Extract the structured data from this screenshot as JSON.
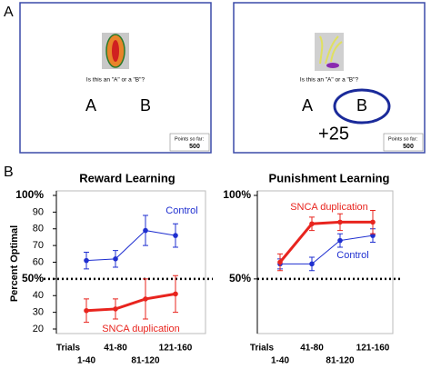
{
  "panel_a": {
    "label": "A",
    "screens": [
      {
        "question": "Is this an \"A\" or a \"B\"?",
        "option_a": "A",
        "option_b": "B",
        "points_label": "Points so far:",
        "points": "500"
      },
      {
        "question": "Is this an \"A\" or a \"B\"?",
        "option_a": "A",
        "option_b": "B",
        "feedback": "+25",
        "points_label": "Points so far:",
        "points": "500"
      }
    ]
  },
  "panel_b": {
    "label": "B",
    "y_label": "Percent Optimal"
  },
  "chart_data": [
    {
      "type": "line",
      "title": "Reward Learning",
      "x_label": "Trials",
      "categories": [
        "1-40",
        "41-80",
        "81-120",
        "121-160"
      ],
      "ylim": [
        20,
        100
      ],
      "yticks": [
        {
          "value": 100,
          "label": "100%"
        },
        90,
        80,
        70,
        60,
        {
          "value": 50,
          "label": "50%"
        },
        40,
        30,
        20
      ],
      "reference_line": 50,
      "series": [
        {
          "name": "Control",
          "color": "#1f2fd0",
          "values": [
            61,
            62,
            79,
            76
          ],
          "errors": [
            5,
            5,
            9,
            7
          ]
        },
        {
          "name": "SNCA duplication",
          "color": "#e8241e",
          "values": [
            31,
            32,
            38,
            41
          ],
          "errors": [
            7,
            6,
            12,
            11
          ]
        }
      ]
    },
    {
      "type": "line",
      "title": "Punishment Learning",
      "x_label": "Trials",
      "categories": [
        "1-40",
        "41-80",
        "81-120",
        "121-160"
      ],
      "ylim": [
        20,
        100
      ],
      "yticks": [
        {
          "value": 100,
          "label": "100%"
        },
        {
          "value": 50,
          "label": "50%"
        }
      ],
      "reference_line": 50,
      "series": [
        {
          "name": "Control",
          "color": "#1f2fd0",
          "values": [
            59,
            59,
            73,
            76
          ],
          "errors": [
            3,
            4,
            4,
            4
          ]
        },
        {
          "name": "SNCA duplication",
          "color": "#e8241e",
          "values": [
            60,
            83,
            84,
            84
          ],
          "errors": [
            5,
            4,
            5,
            7
          ]
        }
      ]
    }
  ]
}
